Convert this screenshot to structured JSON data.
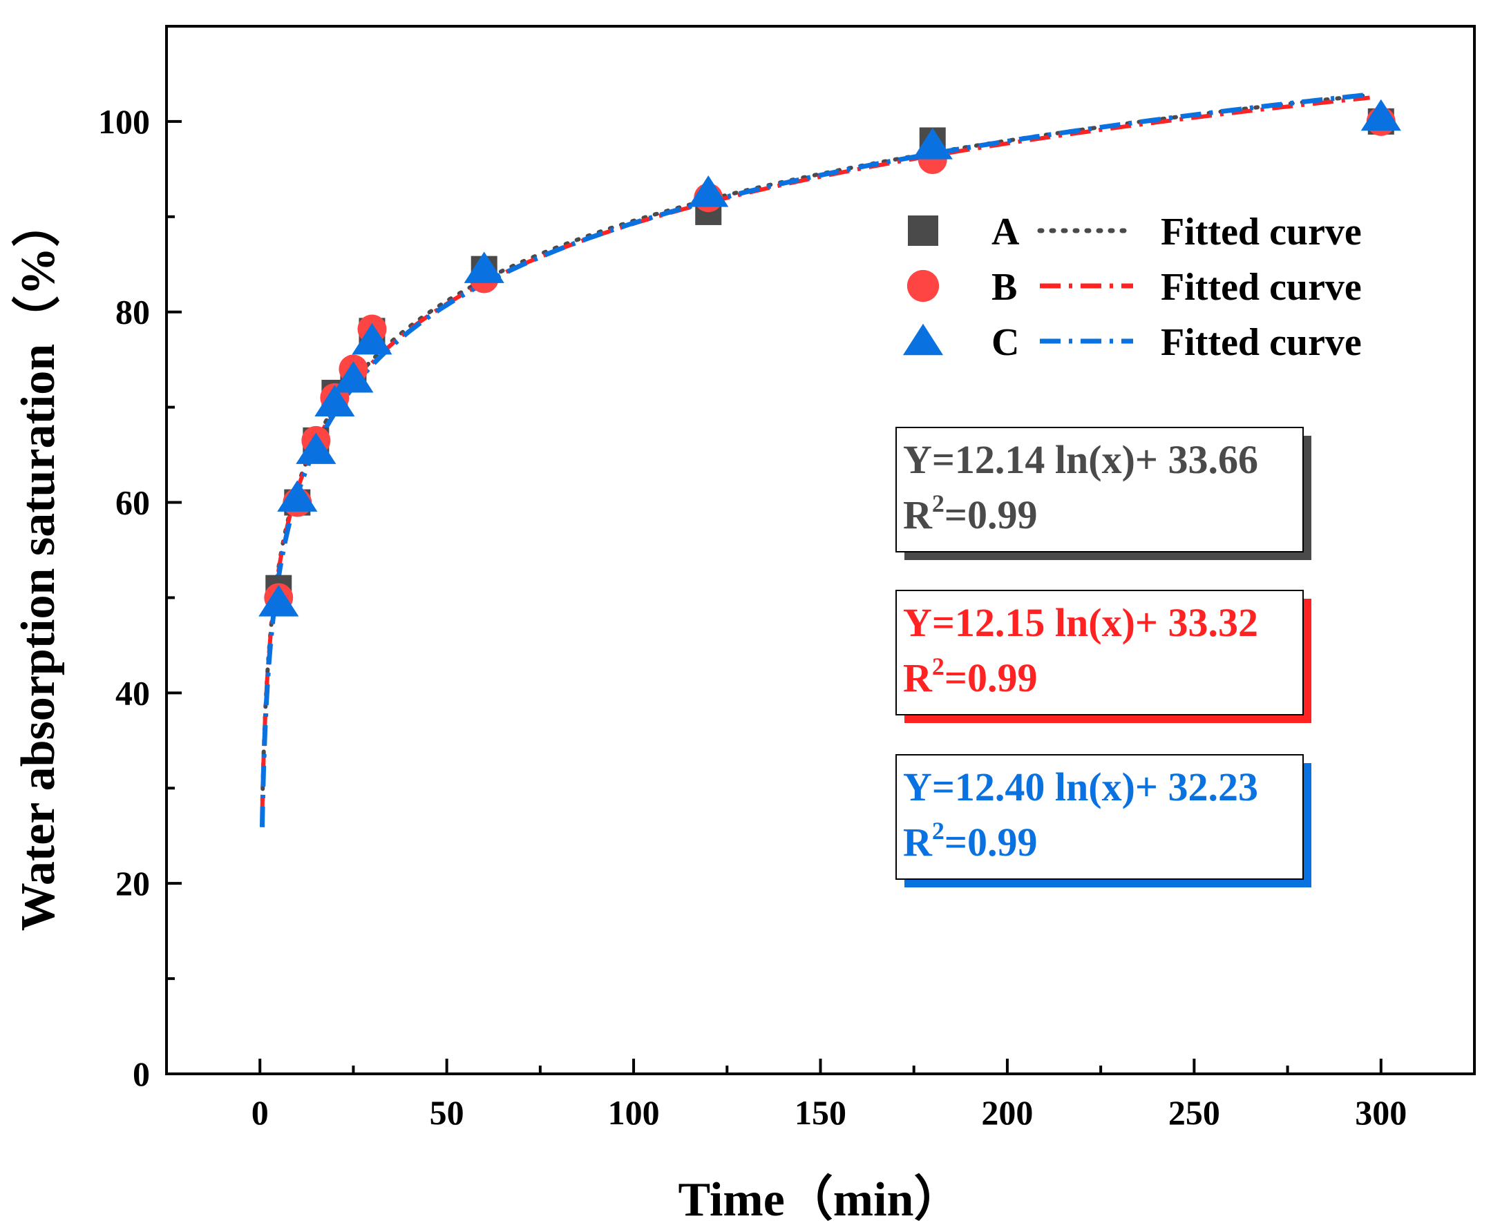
{
  "chart_data": {
    "type": "scatter",
    "xlabel": "Time（min）",
    "ylabel": "Water absorption saturation（%）",
    "xlim": [
      -25,
      325
    ],
    "ylim": [
      0,
      110
    ],
    "xticks": [
      0,
      50,
      100,
      150,
      200,
      250,
      300
    ],
    "yticks": [
      0,
      20,
      40,
      60,
      80,
      100
    ],
    "grid": false,
    "legend_position": "top-right",
    "series": [
      {
        "name": "A",
        "marker": "square",
        "color": "#4a4a4a",
        "x": [
          5,
          10,
          15,
          20,
          25,
          30,
          60,
          120,
          180,
          300
        ],
        "y": [
          51,
          60,
          66.5,
          71.5,
          73,
          78,
          84.5,
          90.5,
          98,
          100
        ]
      },
      {
        "name": "B",
        "marker": "circle",
        "color": "#ff4444",
        "x": [
          5,
          10,
          15,
          20,
          25,
          30,
          60,
          120,
          180,
          300
        ],
        "y": [
          50,
          60,
          66.5,
          71,
          74,
          78.2,
          83.5,
          92,
          96,
          100
        ]
      },
      {
        "name": "C",
        "marker": "triangle",
        "color": "#0a72e0",
        "x": [
          5,
          10,
          15,
          20,
          25,
          30,
          60,
          120,
          180,
          300
        ],
        "y": [
          49.5,
          60.5,
          65.5,
          70.5,
          73,
          77,
          84.5,
          92.5,
          97.5,
          100.5
        ]
      }
    ],
    "fits": [
      {
        "series": "A",
        "name": "Fitted curve",
        "a": 12.14,
        "b": 33.66,
        "style": "dotted",
        "color": "#4a4a4a",
        "equation": "Y=12.14 ln(x)+ 33.66",
        "r2_label": "R",
        "r2_sup": "2",
        "r2_value": "=0.99"
      },
      {
        "series": "B",
        "name": "Fitted curve",
        "a": 12.15,
        "b": 33.32,
        "style": "dash-dot",
        "color": "#ff2222",
        "equation": "Y=12.15 ln(x)+ 33.32",
        "r2_label": "R",
        "r2_sup": "2",
        "r2_value": "=0.99"
      },
      {
        "series": "C",
        "name": "Fitted curve",
        "a": 12.4,
        "b": 32.23,
        "style": "dash-dot",
        "color": "#0a72e0",
        "equation": "Y=12.40 ln(x)+ 32.23",
        "r2_label": "R",
        "r2_sup": "2",
        "r2_value": "=0.99"
      }
    ]
  }
}
